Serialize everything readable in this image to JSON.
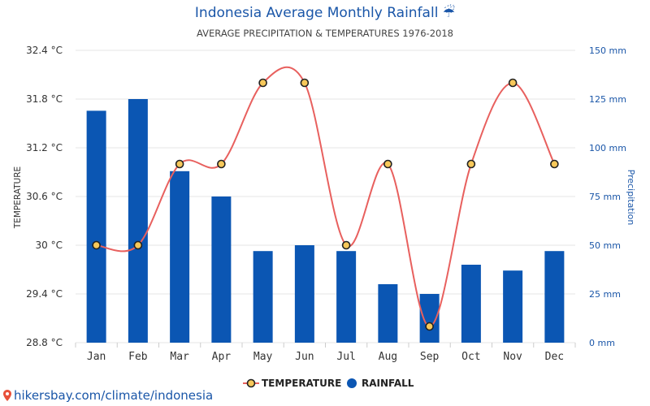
{
  "header": {
    "title": "Indonesia Average Monthly Rainfall ☔",
    "subtitle": "AVERAGE PRECIPITATION & TEMPERATURES 1976-2018"
  },
  "footer": {
    "link_text": "hikersbay.com/climate/indonesia"
  },
  "colors": {
    "rain_bar": "#0b56b3",
    "temp_line": "#e8605e",
    "temp_marker_fill": "#f7c85a",
    "temp_marker_stroke": "#222222",
    "grid": "#e6e6e6",
    "title": "#1a56a8"
  },
  "chart_data": {
    "type": "bar",
    "categories": [
      "Jan",
      "Feb",
      "Mar",
      "Apr",
      "May",
      "Jun",
      "Jul",
      "Aug",
      "Sep",
      "Oct",
      "Nov",
      "Dec"
    ],
    "series": [
      {
        "name": "TEMPERATURE",
        "kind": "line",
        "axis": "left",
        "unit": "°C",
        "values": [
          30,
          30,
          31,
          31,
          32,
          32,
          30,
          31,
          29,
          31,
          32,
          31
        ]
      },
      {
        "name": "RAINFALL",
        "kind": "bar",
        "axis": "right",
        "unit": "mm",
        "values": [
          119,
          125,
          88,
          75,
          47,
          50,
          47,
          30,
          25,
          40,
          37,
          47
        ]
      }
    ],
    "y_left": {
      "label": "TEMPERATURE",
      "ylim": [
        28.8,
        32.4
      ],
      "ticks": [
        "32.4 °C",
        "31.8 °C",
        "31.2 °C",
        "30.6 °C",
        "30 °C",
        "29.4 °C",
        "28.8 °C"
      ]
    },
    "y_right": {
      "label": "Precipitation",
      "ylim": [
        0,
        150
      ],
      "ticks": [
        "150 mm",
        "125 mm",
        "100 mm",
        "75 mm",
        "50 mm",
        "25 mm",
        "0 mm"
      ]
    },
    "grid": true,
    "legend_position": "bottom-center"
  }
}
